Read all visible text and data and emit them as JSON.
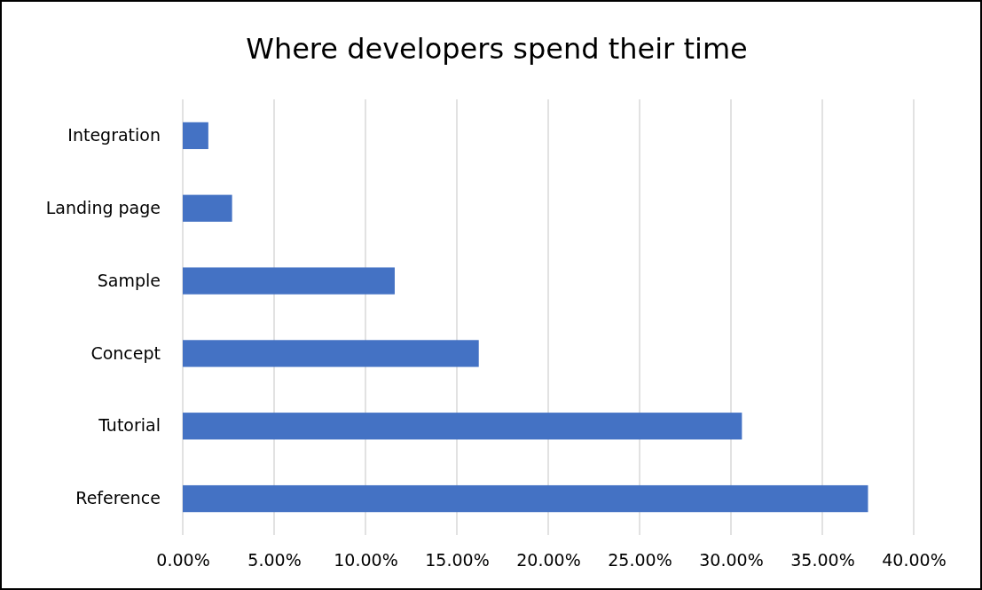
{
  "chart_data": {
    "type": "bar",
    "orientation": "horizontal",
    "title": "Where developers spend their time",
    "categories": [
      "Integration",
      "Landing page",
      "Sample",
      "Concept",
      "Tutorial",
      "Reference"
    ],
    "values": [
      1.4,
      2.7,
      11.6,
      16.2,
      30.6,
      37.5
    ],
    "color": "#4472c4",
    "xlim": [
      0,
      40
    ],
    "xticks": [
      {
        "value": 0,
        "label": "0.00%"
      },
      {
        "value": 5,
        "label": "5.00%"
      },
      {
        "value": 10,
        "label": "10.00%"
      },
      {
        "value": 15,
        "label": "15.00%"
      },
      {
        "value": 20,
        "label": "20.00%"
      },
      {
        "value": 25,
        "label": "25.00%"
      },
      {
        "value": 30,
        "label": "30.00%"
      },
      {
        "value": 35,
        "label": "35.00%"
      },
      {
        "value": 40,
        "label": "40.00%"
      }
    ],
    "grid": "x"
  }
}
